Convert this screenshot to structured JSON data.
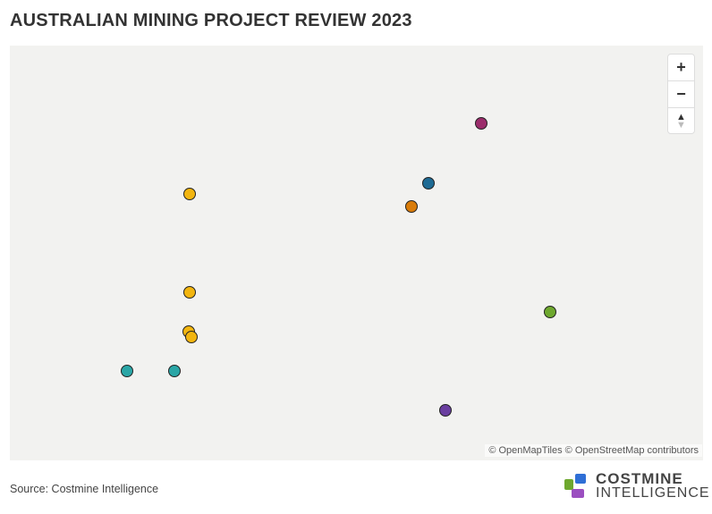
{
  "title": "AUSTRALIAN MINING PROJECT REVIEW 2023",
  "map": {
    "controls": {
      "zoom_in": "+",
      "zoom_out": "−",
      "reset_north": "▲"
    },
    "attribution": "© OpenMapTiles © OpenStreetMap contributors",
    "markers": [
      {
        "color": "#9b2d6b"
      },
      {
        "color": "#1f6b94"
      },
      {
        "color": "#d97c0a"
      },
      {
        "color": "#f2b50f"
      },
      {
        "color": "#f2b50f"
      },
      {
        "color": "#f2b50f"
      },
      {
        "color": "#f2b50f"
      },
      {
        "color": "#6ea82e"
      },
      {
        "color": "#2aa6a6"
      },
      {
        "color": "#2aa6a6"
      },
      {
        "color": "#6a3fa0"
      }
    ]
  },
  "source": "Source: Costmine Intelligence",
  "logo": {
    "line1": "COSTMINE",
    "line2": "INTELLIGENCE"
  }
}
